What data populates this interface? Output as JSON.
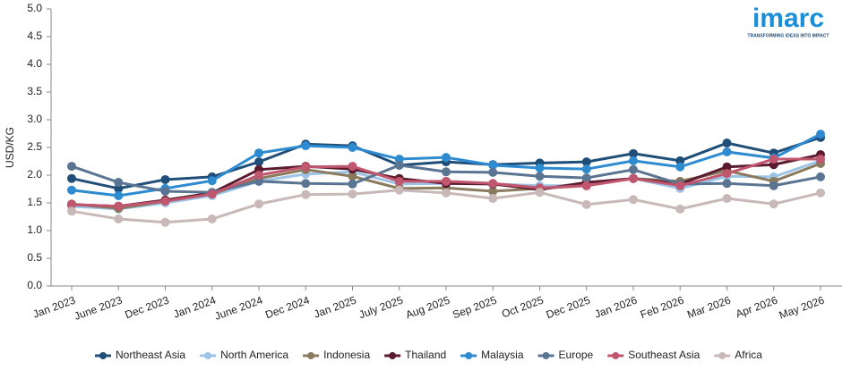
{
  "chart_data": {
    "type": "line",
    "y_label": "USD/KG",
    "categories": [
      "Jan 2023",
      "June 2023",
      "Dec 2023",
      "Jan 2024",
      "June 2024",
      "Dec 2024",
      "Jan 2025",
      "July 2025",
      "Aug 2025",
      "Sep 2025",
      "Oct 2025",
      "Dec 2025",
      "Jan 2026",
      "Feb 2026",
      "Mar 2026",
      "Apr 2026",
      "May 2026"
    ],
    "series": [
      {
        "name": "Northeast Asia",
        "color": "#1f4e79",
        "values": [
          1.94,
          1.76,
          1.92,
          1.97,
          2.24,
          2.56,
          2.53,
          2.18,
          2.24,
          2.19,
          2.22,
          2.24,
          2.39,
          2.26,
          2.58,
          2.4,
          2.68
        ]
      },
      {
        "name": "North America",
        "color": "#9dc3e6",
        "values": [
          1.44,
          1.39,
          1.5,
          1.63,
          1.89,
          2.02,
          2.06,
          1.84,
          1.85,
          1.84,
          1.81,
          1.81,
          1.94,
          1.76,
          1.98,
          1.97,
          2.26
        ]
      },
      {
        "name": "Indonesia",
        "color": "#8b7b5e",
        "values": [
          1.48,
          1.4,
          1.53,
          1.66,
          1.94,
          2.1,
          1.98,
          1.76,
          1.77,
          1.71,
          1.76,
          1.81,
          1.94,
          1.89,
          2.08,
          1.89,
          2.21
        ]
      },
      {
        "name": "Thailand",
        "color": "#5b1a2e",
        "values": [
          1.47,
          1.44,
          1.55,
          1.68,
          2.1,
          2.16,
          2.11,
          1.94,
          1.85,
          1.84,
          1.74,
          1.87,
          1.94,
          1.84,
          2.15,
          2.19,
          2.37
        ]
      },
      {
        "name": "Malaysia",
        "color": "#2e8bd0",
        "values": [
          1.73,
          1.63,
          1.76,
          1.9,
          2.4,
          2.53,
          2.5,
          2.29,
          2.32,
          2.18,
          2.13,
          2.11,
          2.26,
          2.15,
          2.42,
          2.31,
          2.74
        ]
      },
      {
        "name": "Europe",
        "color": "#5a7592",
        "values": [
          2.16,
          1.87,
          1.71,
          1.69,
          1.89,
          1.85,
          1.84,
          2.18,
          2.06,
          2.05,
          1.98,
          1.95,
          2.1,
          1.84,
          1.85,
          1.81,
          1.97
        ]
      },
      {
        "name": "Southeast Asia",
        "color": "#c0576e",
        "values": [
          1.47,
          1.44,
          1.53,
          1.66,
          2.0,
          2.15,
          2.16,
          1.89,
          1.89,
          1.85,
          1.77,
          1.81,
          1.94,
          1.81,
          2.03,
          2.29,
          2.29
        ]
      },
      {
        "name": "Africa",
        "color": "#c9b8b8",
        "values": [
          1.35,
          1.21,
          1.15,
          1.21,
          1.48,
          1.65,
          1.66,
          1.73,
          1.68,
          1.58,
          1.69,
          1.47,
          1.56,
          1.39,
          1.58,
          1.48,
          1.68
        ]
      }
    ],
    "ylim": [
      0,
      5
    ],
    "yticks": [
      {
        "value": 0,
        "label": "0.0"
      },
      {
        "value": 0.5,
        "label": "0.5"
      },
      {
        "value": 1,
        "label": "1.0"
      },
      {
        "value": 1.5,
        "label": "1.5"
      },
      {
        "value": 2,
        "label": "2.0"
      },
      {
        "value": 2.5,
        "label": "2.5"
      },
      {
        "value": 3,
        "label": "3.0"
      },
      {
        "value": 3.5,
        "label": "3.5"
      },
      {
        "value": 4,
        "label": "4.0"
      },
      {
        "value": 4.5,
        "label": "4.5"
      },
      {
        "value": 5,
        "label": "5.0"
      }
    ],
    "grid": false,
    "legend": "bottom"
  },
  "brand": {
    "name": "imarc",
    "tagline": "TRANSFORMING IDEAS INTO IMPACT"
  }
}
